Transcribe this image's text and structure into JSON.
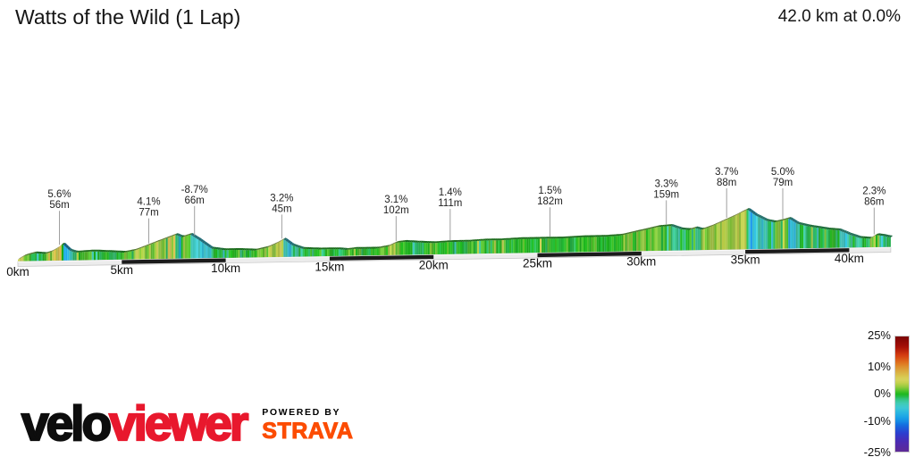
{
  "header": {
    "title": "Watts of the Wild (1 Lap)",
    "summary": "42.0 km at 0.0%"
  },
  "chart_data": {
    "type": "area",
    "title": "Watts of the Wild (1 Lap)",
    "total_distance_km": 42.0,
    "average_gradient_pct": 0.0,
    "x_axis_unit": "km",
    "x_ticks": [
      "0km",
      "5km",
      "10km",
      "15km",
      "20km",
      "25km",
      "30km",
      "35km",
      "40km"
    ],
    "x_tick_km": [
      0,
      5,
      10,
      15,
      20,
      25,
      30,
      35,
      40
    ],
    "annotations": [
      {
        "grade": "5.6%",
        "height": "56m",
        "km": 2.0,
        "line_len": 40
      },
      {
        "grade": "4.1%",
        "height": "77m",
        "km": 6.3,
        "line_len": 30
      },
      {
        "grade": "-8.7%",
        "height": "66m",
        "km": 8.5,
        "line_len": 35
      },
      {
        "grade": "3.2%",
        "height": "45m",
        "km": 12.7,
        "line_len": 29
      },
      {
        "grade": "3.1%",
        "height": "102m",
        "km": 18.2,
        "line_len": 30
      },
      {
        "grade": "1.4%",
        "height": "111m",
        "km": 20.8,
        "line_len": 37
      },
      {
        "grade": "1.5%",
        "height": "182m",
        "km": 25.6,
        "line_len": 35
      },
      {
        "grade": "3.3%",
        "height": "159m",
        "km": 31.2,
        "line_len": 29
      },
      {
        "grade": "3.7%",
        "height": "88m",
        "km": 34.1,
        "line_len": 35
      },
      {
        "grade": "5.0%",
        "height": "79m",
        "km": 36.8,
        "line_len": 36
      },
      {
        "grade": "2.3%",
        "height": "86m",
        "km": 41.2,
        "line_len": 32
      }
    ],
    "elevation_profile_note": "relative elevation units estimated from pixels, no elevation axis shown",
    "elevation_profile": [
      [
        0,
        2
      ],
      [
        0.3,
        6
      ],
      [
        0.8,
        9
      ],
      [
        1.3,
        8
      ],
      [
        1.6,
        10
      ],
      [
        1.9,
        14
      ],
      [
        2.15,
        19
      ],
      [
        2.5,
        11
      ],
      [
        2.8,
        9
      ],
      [
        3.6,
        10
      ],
      [
        4.4,
        9
      ],
      [
        5.1,
        8
      ],
      [
        5.6,
        10
      ],
      [
        6.3,
        16
      ],
      [
        7.0,
        22
      ],
      [
        7.6,
        27
      ],
      [
        7.9,
        24
      ],
      [
        8.3,
        27
      ],
      [
        8.7,
        21
      ],
      [
        9.3,
        11
      ],
      [
        9.9,
        9
      ],
      [
        10.6,
        9
      ],
      [
        11.4,
        8
      ],
      [
        12.0,
        11
      ],
      [
        12.4,
        15
      ],
      [
        12.8,
        20
      ],
      [
        13.2,
        13
      ],
      [
        13.7,
        9
      ],
      [
        14.5,
        8
      ],
      [
        15.4,
        8
      ],
      [
        15.8,
        7
      ],
      [
        16.2,
        8
      ],
      [
        17.3,
        8
      ],
      [
        17.8,
        10
      ],
      [
        18.2,
        14
      ],
      [
        18.6,
        15
      ],
      [
        19.2,
        14
      ],
      [
        20.0,
        13
      ],
      [
        20.8,
        14
      ],
      [
        21.6,
        14
      ],
      [
        22.4,
        15
      ],
      [
        23.2,
        15
      ],
      [
        24.2,
        16
      ],
      [
        25.2,
        16
      ],
      [
        26.2,
        16
      ],
      [
        27.2,
        17
      ],
      [
        28.2,
        17
      ],
      [
        29.0,
        18
      ],
      [
        29.6,
        21
      ],
      [
        30.2,
        24
      ],
      [
        30.8,
        27
      ],
      [
        31.4,
        28
      ],
      [
        31.9,
        24
      ],
      [
        32.3,
        23
      ],
      [
        32.6,
        25
      ],
      [
        32.9,
        23
      ],
      [
        33.3,
        26
      ],
      [
        33.8,
        31
      ],
      [
        34.4,
        37
      ],
      [
        35.1,
        45
      ],
      [
        35.5,
        38
      ],
      [
        36.0,
        32
      ],
      [
        36.4,
        30
      ],
      [
        36.8,
        32
      ],
      [
        37.1,
        34
      ],
      [
        37.5,
        28
      ],
      [
        38.0,
        25
      ],
      [
        38.5,
        23
      ],
      [
        39.0,
        21
      ],
      [
        39.5,
        20
      ],
      [
        40.0,
        15
      ],
      [
        40.5,
        11
      ],
      [
        41.0,
        10
      ],
      [
        41.3,
        14
      ],
      [
        41.6,
        13
      ],
      [
        42.0,
        11
      ]
    ],
    "legend": {
      "labels": [
        "25%",
        "10%",
        "0%",
        "-10%",
        "-25%"
      ],
      "values": [
        25,
        10,
        0,
        -10,
        -25
      ],
      "position": "bottom-right"
    }
  },
  "logo": {
    "brand_black": "velo",
    "brand_red": "viewer",
    "powered_by": "POWERED BY",
    "strava": "STRAVA"
  },
  "colors": {
    "veloviewer_red": "#e8182d",
    "strava_orange": "#fc4c02",
    "flat_green": "#1fb81f",
    "climb_yellow": "#d8d55e",
    "descent_cyan": "#3fc9d4",
    "distance_bar_dark": "#1b1b1b",
    "distance_bar_light": "#ececec"
  }
}
